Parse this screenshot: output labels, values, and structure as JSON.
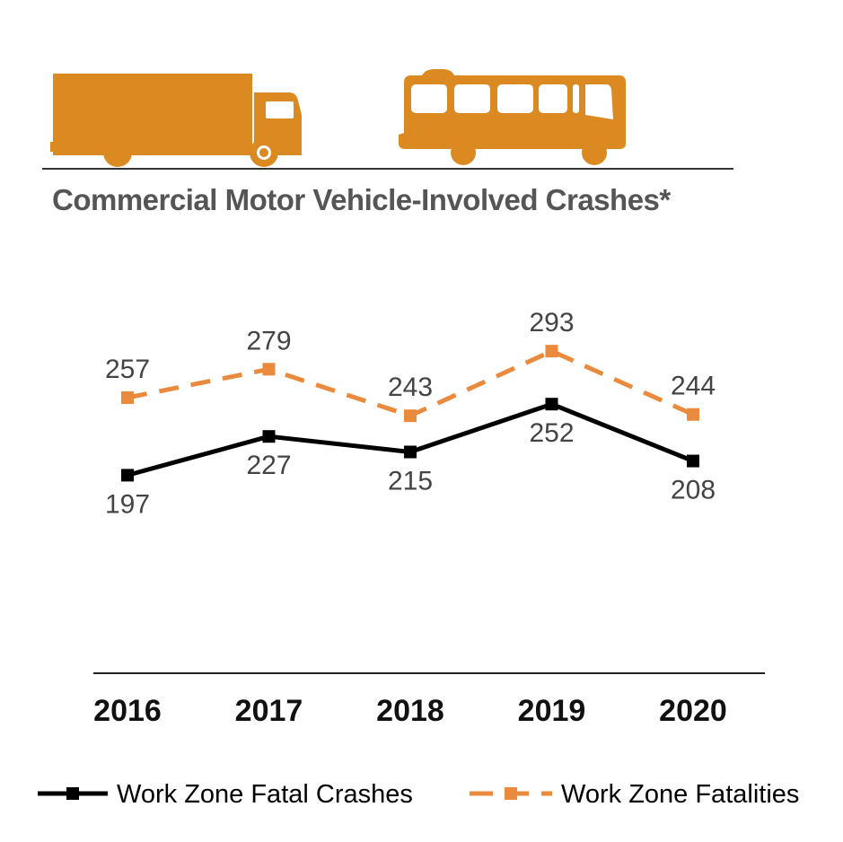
{
  "header": {
    "title": "Commercial Motor Vehicle-Involved Crashes*",
    "icons": [
      "truck-icon",
      "bus-icon"
    ],
    "icon_color": "#DB8A22"
  },
  "chart_data": {
    "type": "line",
    "title": "Commercial Motor Vehicle-Involved Crashes*",
    "xlabel": "",
    "ylabel": "",
    "categories": [
      "2016",
      "2017",
      "2018",
      "2019",
      "2020"
    ],
    "series": [
      {
        "name": "Work Zone Fatal Crashes",
        "values": [
          197,
          227,
          215,
          252,
          208
        ],
        "color": "#000000",
        "style": "solid",
        "marker": "square",
        "label_position": "below"
      },
      {
        "name": "Work Zone Fatalities",
        "values": [
          257,
          279,
          243,
          293,
          244
        ],
        "color": "#EA8A3C",
        "style": "dashed",
        "marker": "square",
        "label_position": "above"
      }
    ],
    "grid": false,
    "legend": "bottom"
  }
}
